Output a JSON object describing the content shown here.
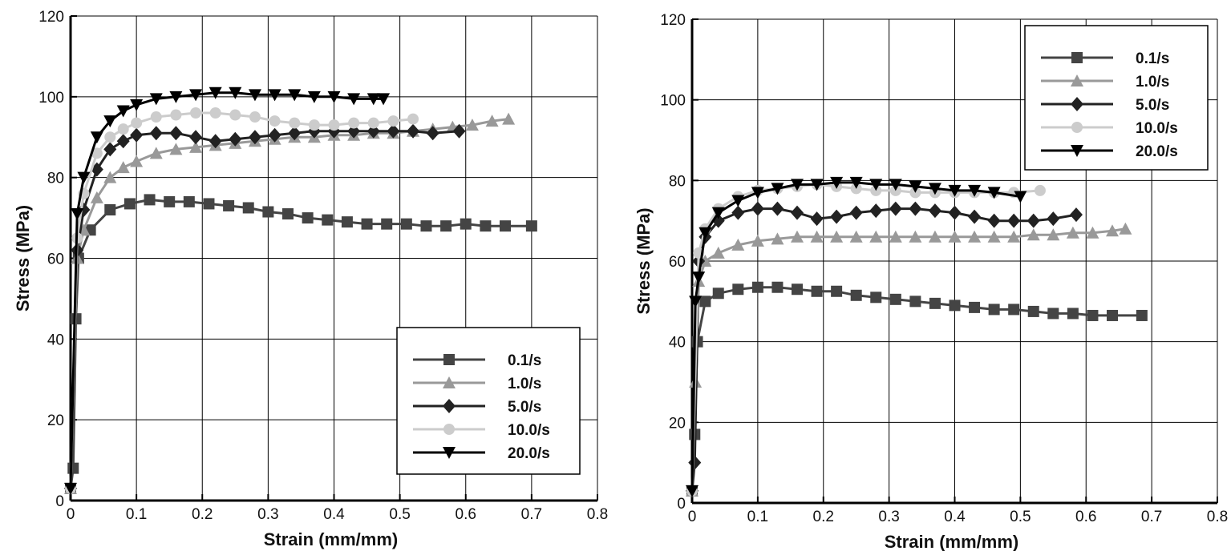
{
  "chart_data": [
    {
      "type": "line",
      "xlabel": "Strain (mm/mm)",
      "ylabel": "Stress (MPa)",
      "xlim": [
        0,
        0.8
      ],
      "ylim": [
        0,
        120
      ],
      "xticks": [
        "0",
        "0.1",
        "0.2",
        "0.3",
        "0.4",
        "0.5",
        "0.6",
        "0.7",
        "0.8"
      ],
      "yticks": [
        "0",
        "20",
        "40",
        "60",
        "80",
        "100",
        "120"
      ],
      "grid": true,
      "legend_position": "bottom-right",
      "series": [
        {
          "name": "0.1/s",
          "color": "#444444",
          "marker": "square",
          "x": [
            0,
            0.004,
            0.008,
            0.012,
            0.03,
            0.06,
            0.09,
            0.12,
            0.15,
            0.18,
            0.21,
            0.24,
            0.27,
            0.3,
            0.33,
            0.36,
            0.39,
            0.42,
            0.45,
            0.48,
            0.51,
            0.54,
            0.57,
            0.6,
            0.63,
            0.66,
            0.7
          ],
          "y": [
            3,
            8,
            45,
            60,
            67,
            72,
            73.5,
            74.5,
            74,
            74,
            73.5,
            73,
            72.5,
            71.5,
            71,
            70,
            69.5,
            69,
            68.5,
            68.5,
            68.5,
            68,
            68,
            68.5,
            68,
            68,
            68
          ]
        },
        {
          "name": "1.0/s",
          "color": "#999999",
          "marker": "triangle",
          "x": [
            0,
            0.01,
            0.02,
            0.04,
            0.06,
            0.08,
            0.1,
            0.13,
            0.16,
            0.19,
            0.22,
            0.25,
            0.28,
            0.31,
            0.34,
            0.37,
            0.4,
            0.43,
            0.46,
            0.49,
            0.52,
            0.55,
            0.58,
            0.61,
            0.64,
            0.665
          ],
          "y": [
            3,
            60,
            67,
            75,
            80,
            82.5,
            84,
            86,
            87,
            87.5,
            88,
            88.5,
            89,
            89.5,
            90,
            90,
            90.5,
            90.5,
            91,
            91,
            91.5,
            92,
            92.5,
            93,
            94,
            94.5
          ]
        },
        {
          "name": "5.0/s",
          "color": "#222222",
          "marker": "diamond",
          "x": [
            0,
            0.01,
            0.02,
            0.04,
            0.06,
            0.08,
            0.1,
            0.13,
            0.16,
            0.19,
            0.22,
            0.25,
            0.28,
            0.31,
            0.34,
            0.37,
            0.4,
            0.43,
            0.46,
            0.49,
            0.52,
            0.55,
            0.59
          ],
          "y": [
            3,
            62,
            72,
            82,
            87,
            89,
            90.5,
            91,
            91,
            90,
            89,
            89.5,
            90,
            90.5,
            91,
            91.5,
            91.5,
            91.5,
            91.5,
            91.5,
            91.5,
            91,
            91.5
          ]
        },
        {
          "name": "10.0/s",
          "color": "#cccccc",
          "marker": "circle",
          "x": [
            0,
            0.01,
            0.02,
            0.04,
            0.06,
            0.08,
            0.1,
            0.13,
            0.16,
            0.19,
            0.22,
            0.25,
            0.28,
            0.31,
            0.34,
            0.37,
            0.4,
            0.43,
            0.46,
            0.49,
            0.52
          ],
          "y": [
            3,
            65,
            76,
            86,
            90,
            92,
            93.5,
            95,
            95.5,
            96,
            96,
            95.5,
            95,
            94,
            93.5,
            93,
            93,
            93.5,
            93.5,
            94,
            94.5
          ]
        },
        {
          "name": "20.0/s",
          "color": "#000000",
          "marker": "triangle-down",
          "x": [
            0,
            0.01,
            0.02,
            0.04,
            0.06,
            0.08,
            0.1,
            0.13,
            0.16,
            0.19,
            0.22,
            0.25,
            0.28,
            0.31,
            0.34,
            0.37,
            0.4,
            0.43,
            0.46,
            0.475
          ],
          "y": [
            3,
            71,
            80,
            90,
            94,
            96.5,
            98,
            99.5,
            100,
            100.5,
            101,
            101,
            100.5,
            100.5,
            100.5,
            100,
            100,
            99.5,
            99.5,
            99.5
          ]
        }
      ]
    },
    {
      "type": "line",
      "xlabel": "Strain (mm/mm)",
      "ylabel": "Stress (MPa)",
      "xlim": [
        0,
        0.8
      ],
      "ylim": [
        0,
        120
      ],
      "xticks": [
        "0",
        "0.1",
        "0.2",
        "0.3",
        "0.4",
        "0.5",
        "0.6",
        "0.7",
        "0.8"
      ],
      "yticks": [
        "0",
        "20",
        "40",
        "60",
        "80",
        "100",
        "120"
      ],
      "grid": true,
      "legend_position": "top-right",
      "series": [
        {
          "name": "0.1/s",
          "color": "#444444",
          "marker": "square",
          "x": [
            0,
            0.004,
            0.008,
            0.02,
            0.04,
            0.07,
            0.1,
            0.13,
            0.16,
            0.19,
            0.22,
            0.25,
            0.28,
            0.31,
            0.34,
            0.37,
            0.4,
            0.43,
            0.46,
            0.49,
            0.52,
            0.55,
            0.58,
            0.61,
            0.64,
            0.685
          ],
          "y": [
            3,
            17,
            40,
            50,
            52,
            53,
            53.5,
            53.5,
            53,
            52.5,
            52.5,
            51.5,
            51,
            50.5,
            50,
            49.5,
            49,
            48.5,
            48,
            48,
            47.5,
            47,
            47,
            46.5,
            46.5,
            46.5
          ]
        },
        {
          "name": "1.0/s",
          "color": "#999999",
          "marker": "triangle",
          "x": [
            0,
            0.005,
            0.01,
            0.02,
            0.04,
            0.07,
            0.1,
            0.13,
            0.16,
            0.19,
            0.22,
            0.25,
            0.28,
            0.31,
            0.34,
            0.37,
            0.4,
            0.43,
            0.46,
            0.49,
            0.52,
            0.55,
            0.58,
            0.61,
            0.64,
            0.66
          ],
          "y": [
            3,
            30,
            55,
            60,
            62,
            64,
            65,
            65.5,
            66,
            66,
            66,
            66,
            66,
            66,
            66,
            66,
            66,
            66,
            66,
            66,
            66.5,
            66.5,
            67,
            67,
            67.5,
            68
          ]
        },
        {
          "name": "5.0/s",
          "color": "#222222",
          "marker": "diamond",
          "x": [
            0,
            0.004,
            0.01,
            0.02,
            0.04,
            0.07,
            0.1,
            0.13,
            0.16,
            0.19,
            0.22,
            0.25,
            0.28,
            0.31,
            0.34,
            0.37,
            0.4,
            0.43,
            0.46,
            0.49,
            0.52,
            0.55,
            0.585
          ],
          "y": [
            3,
            10,
            60,
            66,
            70,
            72,
            73,
            73,
            72,
            70.5,
            71,
            72,
            72.5,
            73,
            73,
            72.5,
            72,
            71,
            70,
            70,
            70,
            70.5,
            71.5
          ]
        },
        {
          "name": "10.0/s",
          "color": "#cccccc",
          "marker": "circle",
          "x": [
            0,
            0.01,
            0.02,
            0.04,
            0.07,
            0.1,
            0.13,
            0.16,
            0.19,
            0.22,
            0.25,
            0.28,
            0.31,
            0.34,
            0.37,
            0.4,
            0.43,
            0.46,
            0.49,
            0.53
          ],
          "y": [
            3,
            62,
            68,
            73,
            76,
            77.5,
            78,
            78.5,
            79,
            78.5,
            78,
            77.5,
            77.5,
            77,
            77,
            77,
            77,
            77,
            77,
            77.5
          ]
        },
        {
          "name": "20.0/s",
          "color": "#000000",
          "marker": "triangle-down",
          "x": [
            0,
            0.005,
            0.01,
            0.02,
            0.04,
            0.07,
            0.1,
            0.13,
            0.16,
            0.19,
            0.22,
            0.25,
            0.28,
            0.31,
            0.34,
            0.37,
            0.4,
            0.43,
            0.46,
            0.5
          ],
          "y": [
            3,
            50,
            56,
            67,
            72,
            75,
            77,
            78,
            79,
            79,
            79.5,
            79.5,
            79,
            79,
            78.5,
            78,
            77.5,
            77.5,
            77,
            76
          ]
        }
      ]
    }
  ]
}
